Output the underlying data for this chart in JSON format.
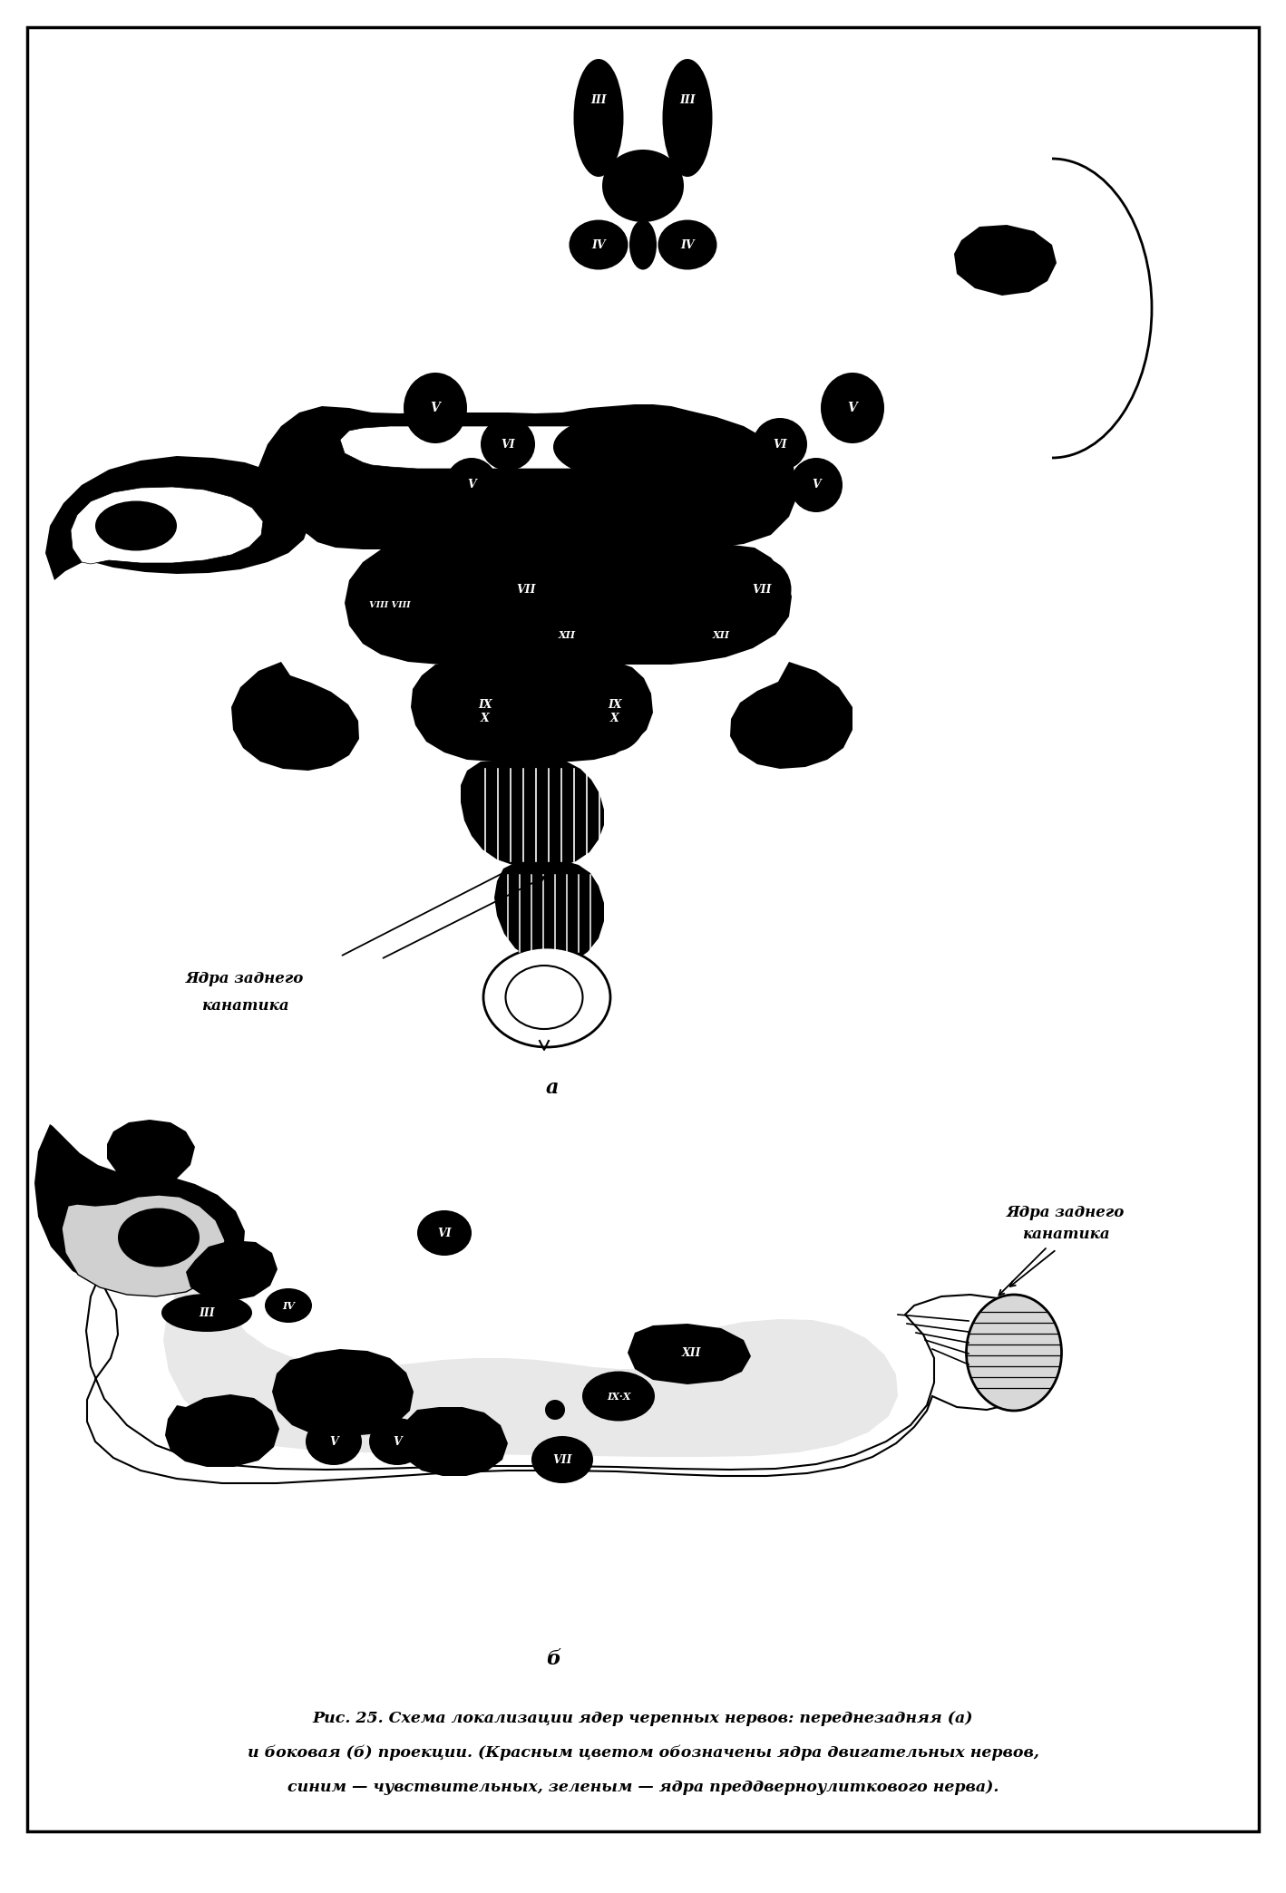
{
  "figure_width": 14.18,
  "figure_height": 20.88,
  "dpi": 100,
  "bg_color": "#ffffff",
  "border_color": "#000000",
  "border_lw": 2.5,
  "label_a": "а",
  "label_b": "б",
  "annotation_a_line1": "Ядра заднего",
  "annotation_a_line2": "канатика",
  "annotation_b_line1": "Ядра заднего",
  "annotation_b_line2": "канатика",
  "caption": "Рис. 25. Схема локализации ядер черепных нервов: переднезадняя (а)",
  "caption2": "и боковая (б) проекции. (Красным цветом обозначены ядра двигательных нервов,",
  "caption3": "синим — чувствительных, зеленым — ядра преддверноулиткового нерва).",
  "caption_fs": 12.5,
  "label_fs": 16,
  "annot_fs": 12
}
